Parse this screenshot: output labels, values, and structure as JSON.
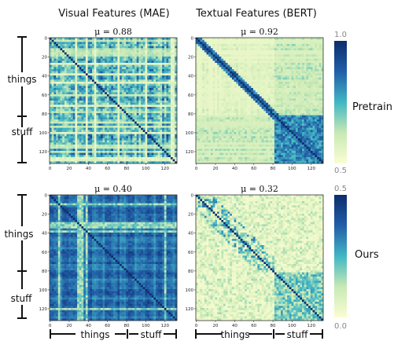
{
  "column_titles": [
    "Visual Features (MAE)",
    "Textual Features (BERT)"
  ],
  "row_labels": [
    "Pretrain",
    "Ours"
  ],
  "group_labels": {
    "things": "things",
    "stuff": "stuff"
  },
  "colorbars": [
    {
      "top_label": "1.0",
      "bottom_label": "0.5",
      "min": 0.5,
      "max": 1.0
    },
    {
      "top_label": "0.5",
      "bottom_label": "0.0",
      "min": 0.0,
      "max": 0.5
    }
  ],
  "colors": {
    "low": "#fbfdd2",
    "mid": "#41b6c4",
    "high": "#0b2d6b"
  },
  "chart_data": [
    {
      "type": "heatmap",
      "title": "μ = 0.88",
      "mu_label": "μ = 0.88",
      "mu": 0.88,
      "n": 133,
      "things_stuff_boundary": 80,
      "xticks": [
        0,
        20,
        40,
        60,
        80,
        100,
        120
      ],
      "yticks": [
        0,
        20,
        40,
        60,
        80,
        100,
        120
      ],
      "colormap": "YlGnBu",
      "vmin": 0.5,
      "vmax": 1.0,
      "pattern": "dense-striped"
    },
    {
      "type": "heatmap",
      "title": "μ = 0.92",
      "mu_label": "μ = 0.92",
      "mu": 0.92,
      "n": 133,
      "things_stuff_boundary": 80,
      "xticks": [
        0,
        20,
        40,
        60,
        80,
        100,
        120
      ],
      "yticks": [
        0,
        20,
        40,
        60,
        80,
        100,
        120
      ],
      "colormap": "YlGnBu",
      "vmin": 0.5,
      "vmax": 1.0,
      "pattern": "light-with-stuff-block"
    },
    {
      "type": "heatmap",
      "title": "μ = 0.40",
      "mu_label": "μ = 0.40",
      "mu": 0.4,
      "n": 133,
      "things_stuff_boundary": 80,
      "xticks": [
        0,
        20,
        40,
        60,
        80,
        100,
        120
      ],
      "yticks": [
        0,
        20,
        40,
        60,
        80,
        100,
        120
      ],
      "colormap": "YlGnBu",
      "vmin": 0.0,
      "vmax": 0.5,
      "pattern": "dark-dense"
    },
    {
      "type": "heatmap",
      "title": "μ = 0.32",
      "mu_label": "μ = 0.32",
      "mu": 0.32,
      "n": 133,
      "things_stuff_boundary": 80,
      "xticks": [
        0,
        20,
        40,
        60,
        80,
        100,
        120
      ],
      "yticks": [
        0,
        20,
        40,
        60,
        80,
        100,
        120
      ],
      "colormap": "YlGnBu",
      "vmin": 0.0,
      "vmax": 0.5,
      "pattern": "block-diagonal"
    }
  ]
}
